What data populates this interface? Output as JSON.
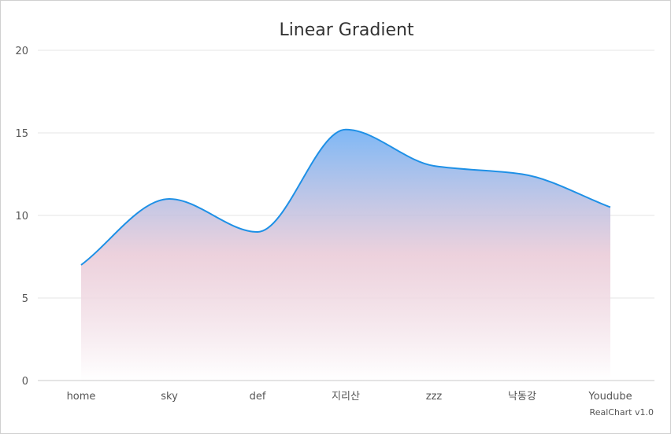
{
  "chart_data": {
    "type": "area",
    "title": "Linear Gradient",
    "categories": [
      "home",
      "sky",
      "def",
      "지리산",
      "zzz",
      "낙동강",
      "Youdube"
    ],
    "values": [
      7,
      11,
      9,
      15.2,
      13,
      12.5,
      10.5
    ],
    "ylim": [
      0,
      20
    ],
    "yticks": [
      0,
      5,
      10,
      15,
      20
    ],
    "grid": true,
    "legend": "none",
    "line_color": "#1e90e6",
    "gradient_top": "#78b4f5",
    "gradient_bottom": "#ffffff",
    "gradient_mid": "#e8c6d4"
  },
  "credit": "RealChart v1.0"
}
